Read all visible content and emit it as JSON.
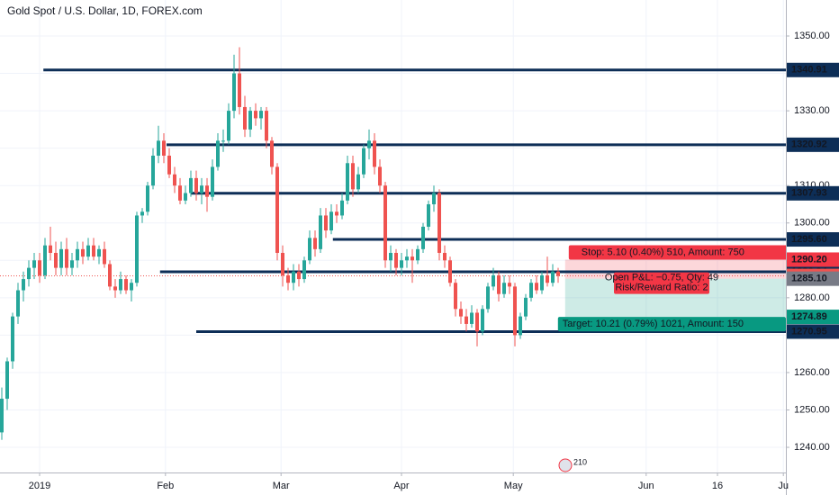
{
  "chart_data": {
    "type": "candlestick",
    "title": "Gold Spot / U.S. Dollar, 1D, FOREX.com",
    "up_color": "#26a69a",
    "down_color": "#ef5350",
    "grid": true,
    "candles": [
      [
        1244,
        1256,
        1242,
        1253
      ],
      [
        1253,
        1264,
        1250,
        1263
      ],
      [
        1263,
        1276,
        1261,
        1275
      ],
      [
        1275,
        1284,
        1273,
        1282
      ],
      [
        1282,
        1287,
        1279,
        1285
      ],
      [
        1285,
        1290,
        1283,
        1288
      ],
      [
        1288,
        1292,
        1285,
        1290
      ],
      [
        1290,
        1292,
        1284,
        1286
      ],
      [
        1286,
        1296,
        1285,
        1294
      ],
      [
        1294,
        1299,
        1290,
        1292
      ],
      [
        1292,
        1295,
        1286,
        1288
      ],
      [
        1288,
        1295,
        1286,
        1293
      ],
      [
        1293,
        1296,
        1286,
        1288
      ],
      [
        1288,
        1292,
        1286,
        1290
      ],
      [
        1290,
        1295,
        1288,
        1293
      ],
      [
        1293,
        1295,
        1289,
        1291
      ],
      [
        1291,
        1296,
        1290,
        1294
      ],
      [
        1294,
        1296,
        1290,
        1291
      ],
      [
        1291,
        1294,
        1289,
        1293
      ],
      [
        1293,
        1295,
        1288,
        1289
      ],
      [
        1289,
        1290,
        1282,
        1283
      ],
      [
        1283,
        1285,
        1280,
        1282
      ],
      [
        1282,
        1287,
        1281,
        1285
      ],
      [
        1285,
        1286,
        1281,
        1282
      ],
      [
        1282,
        1285,
        1279,
        1284
      ],
      [
        1284,
        1303,
        1283,
        1302
      ],
      [
        1302,
        1304,
        1300,
        1303
      ],
      [
        1303,
        1311,
        1302,
        1310
      ],
      [
        1310,
        1320,
        1309,
        1318
      ],
      [
        1318,
        1326,
        1316,
        1322
      ],
      [
        1322,
        1324,
        1316,
        1318
      ],
      [
        1318,
        1320,
        1312,
        1313
      ],
      [
        1313,
        1315,
        1308,
        1310
      ],
      [
        1310,
        1312,
        1305,
        1306
      ],
      [
        1306,
        1310,
        1305,
        1308
      ],
      [
        1308,
        1314,
        1307,
        1312
      ],
      [
        1312,
        1314,
        1306,
        1308
      ],
      [
        1308,
        1312,
        1305,
        1310
      ],
      [
        1310,
        1312,
        1303,
        1307
      ],
      [
        1307,
        1317,
        1306,
        1315
      ],
      [
        1315,
        1324,
        1314,
        1322
      ],
      [
        1322,
        1325,
        1319,
        1322
      ],
      [
        1322,
        1332,
        1321,
        1330
      ],
      [
        1330,
        1345,
        1328,
        1340
      ],
      [
        1340,
        1347,
        1329,
        1331
      ],
      [
        1331,
        1334,
        1323,
        1325
      ],
      [
        1325,
        1331,
        1323,
        1330
      ],
      [
        1330,
        1332,
        1326,
        1328
      ],
      [
        1328,
        1331,
        1325,
        1330
      ],
      [
        1330,
        1331,
        1320,
        1322
      ],
      [
        1322,
        1323,
        1313,
        1315
      ],
      [
        1315,
        1316,
        1290,
        1292
      ],
      [
        1292,
        1294,
        1283,
        1286
      ],
      [
        1286,
        1288,
        1282,
        1284
      ],
      [
        1284,
        1289,
        1282,
        1287
      ],
      [
        1287,
        1289,
        1283,
        1285
      ],
      [
        1285,
        1291,
        1284,
        1290
      ],
      [
        1290,
        1298,
        1289,
        1296
      ],
      [
        1296,
        1298,
        1291,
        1293
      ],
      [
        1293,
        1304,
        1292,
        1302
      ],
      [
        1302,
        1304,
        1296,
        1298
      ],
      [
        1298,
        1305,
        1297,
        1303
      ],
      [
        1303,
        1305,
        1300,
        1302
      ],
      [
        1302,
        1308,
        1301,
        1306
      ],
      [
        1306,
        1318,
        1305,
        1316
      ],
      [
        1316,
        1318,
        1307,
        1309
      ],
      [
        1309,
        1315,
        1308,
        1313
      ],
      [
        1313,
        1321,
        1312,
        1320
      ],
      [
        1320,
        1325,
        1317,
        1322
      ],
      [
        1322,
        1324,
        1313,
        1315
      ],
      [
        1315,
        1317,
        1308,
        1310
      ],
      [
        1310,
        1311,
        1288,
        1290
      ],
      [
        1290,
        1294,
        1287,
        1292
      ],
      [
        1292,
        1293,
        1286,
        1288
      ],
      [
        1288,
        1292,
        1286,
        1290
      ],
      [
        1290,
        1293,
        1288,
        1291
      ],
      [
        1291,
        1293,
        1284,
        1290
      ],
      [
        1290,
        1294,
        1289,
        1293
      ],
      [
        1293,
        1300,
        1292,
        1299
      ],
      [
        1299,
        1306,
        1298,
        1305
      ],
      [
        1305,
        1310,
        1303,
        1308
      ],
      [
        1308,
        1309,
        1290,
        1292
      ],
      [
        1292,
        1294,
        1288,
        1290
      ],
      [
        1290,
        1291,
        1283,
        1284
      ],
      [
        1284,
        1285,
        1275,
        1277
      ],
      [
        1277,
        1279,
        1273,
        1275
      ],
      [
        1275,
        1277,
        1271,
        1273
      ],
      [
        1273,
        1278,
        1272,
        1276
      ],
      [
        1276,
        1277,
        1267,
        1271
      ],
      [
        1271,
        1278,
        1270,
        1277
      ],
      [
        1277,
        1284,
        1276,
        1283
      ],
      [
        1283,
        1288,
        1282,
        1286
      ],
      [
        1286,
        1287,
        1279,
        1281
      ],
      [
        1281,
        1286,
        1280,
        1284
      ],
      [
        1284,
        1286,
        1281,
        1283
      ],
      [
        1283,
        1284,
        1267,
        1270
      ],
      [
        1270,
        1276,
        1269,
        1275
      ],
      [
        1275,
        1281,
        1274,
        1280
      ],
      [
        1280,
        1285,
        1279,
        1284
      ],
      [
        1284,
        1286,
        1281,
        1282
      ],
      [
        1282,
        1287,
        1281,
        1286
      ],
      [
        1286,
        1291,
        1283,
        1284
      ],
      [
        1284,
        1289,
        1283,
        1287
      ],
      [
        1287,
        1288,
        1284,
        1285.85
      ]
    ],
    "xlim": [
      -0.3333,
      145.1667
    ],
    "xticks": [
      {
        "value": 7,
        "label": "2019"
      },
      {
        "value": 30.3,
        "label": "Feb"
      },
      {
        "value": 51.7,
        "label": "Mar"
      },
      {
        "value": 74,
        "label": "Apr"
      },
      {
        "value": 94.7,
        "label": "May"
      },
      {
        "value": 119.3,
        "label": "Jun"
      },
      {
        "value": 132.5,
        "label": "16"
      },
      {
        "value": 144.7,
        "label": "Ju"
      }
    ],
    "ylim": [
      1233.27,
      1359.63
    ],
    "yticks": [
      {
        "value": 1240,
        "label": "1240.00"
      },
      {
        "value": 1250,
        "label": "1250.00"
      },
      {
        "value": 1260,
        "label": "1260.00"
      },
      {
        "value": 1270,
        "label": "1270.00"
      },
      {
        "value": 1280,
        "label": "1280.00"
      },
      {
        "value": 1290,
        "label": "1290.00"
      },
      {
        "value": 1300,
        "label": "1300.00"
      },
      {
        "value": 1310,
        "label": "1310.00"
      },
      {
        "value": 1320,
        "label": "1320.00"
      },
      {
        "value": 1330,
        "label": "1330.00"
      },
      {
        "value": 1340,
        "label": "1340.00"
      },
      {
        "value": 1350,
        "label": "1350.00"
      }
    ],
    "line_color": "#0d2e57",
    "lines": [
      {
        "value": 1340.91,
        "label": "1340.91",
        "x_start": 7.7
      },
      {
        "value": 1320.92,
        "label": "1320.92",
        "x_start": 30.5
      },
      {
        "value": 1307.93,
        "label": "1307.93",
        "x_start": 35
      },
      {
        "value": 1295.6,
        "label": "1295.60",
        "x_start": 61.3
      },
      {
        "value": 1286.94,
        "label": "1286.94",
        "x_start": 29.3
      },
      {
        "value": 1270.95,
        "label": "1270.95",
        "x_start": 36
      }
    ],
    "last_price": {
      "value": 1285.85,
      "label": "1285.85"
    },
    "position": {
      "x_start": 104.3,
      "entry": {
        "value": 1285.1,
        "label": "1285.10"
      },
      "stop": {
        "value": 1290.2,
        "label": "1290.20"
      },
      "target": {
        "value": 1274.89,
        "label": "1274.89"
      },
      "stop_text": "Stop: 5.10 (0.40%) 510, Amount: 750",
      "pnl_text": "Open P&L: −0.75, Qty: 49",
      "ratio_text": "Risk/Reward Ratio: 2",
      "target_text": "Target: 10.21 (0.79%) 1021, Amount: 150"
    },
    "badge": "210"
  }
}
